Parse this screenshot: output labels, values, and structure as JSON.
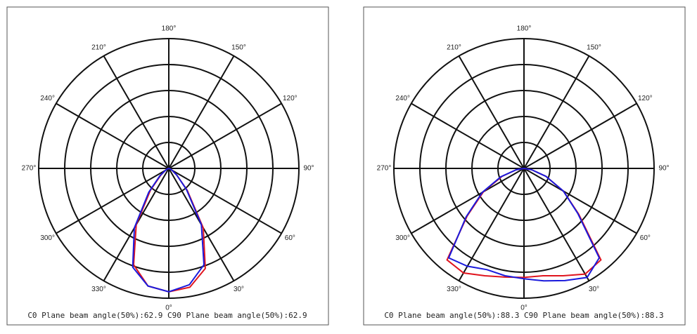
{
  "chart_data": [
    {
      "type": "polar",
      "caption": "C0 Plane beam angle(50%):62.9  C90 Plane beam angle(50%):62.9",
      "rlim": [
        0,
        1
      ],
      "rticks": [
        0.2,
        0.4,
        0.6,
        0.8,
        1
      ],
      "thetaticks": [
        {
          "value": 0,
          "label": "0°"
        },
        {
          "value": 30,
          "label": "30°"
        },
        {
          "value": 60,
          "label": "60°"
        },
        {
          "value": 90,
          "label": "90°"
        },
        {
          "value": 120,
          "label": "120°"
        },
        {
          "value": 150,
          "label": "150°"
        },
        {
          "value": 180,
          "label": "180°"
        },
        {
          "value": 210,
          "label": "210°"
        },
        {
          "value": 240,
          "label": "240°"
        },
        {
          "value": 270,
          "label": "270°"
        },
        {
          "value": 300,
          "label": "300°"
        },
        {
          "value": 330,
          "label": "330°"
        }
      ],
      "theta": [
        270,
        280,
        290,
        300,
        310,
        320,
        330,
        340,
        350,
        0,
        10,
        20,
        30,
        40,
        50,
        60,
        70,
        80,
        90
      ],
      "series": [
        {
          "color": "#e0141e",
          "values": [
            0,
            0,
            0.01,
            0.03,
            0.08,
            0.22,
            0.5,
            0.79,
            0.92,
            0.95,
            0.93,
            0.82,
            0.53,
            0.22,
            0.08,
            0.03,
            0.01,
            0,
            0
          ]
        },
        {
          "color": "#1a1adc",
          "values": [
            0,
            0,
            0.01,
            0.03,
            0.09,
            0.24,
            0.53,
            0.81,
            0.92,
            0.95,
            0.91,
            0.79,
            0.5,
            0.21,
            0.08,
            0.03,
            0.01,
            0,
            0
          ]
        }
      ]
    },
    {
      "type": "polar",
      "caption": "C0 Plane beam angle(50%):88.3  C90 Plane beam angle(50%):88.3",
      "rlim": [
        0,
        1
      ],
      "rticks": [
        0.2,
        0.4,
        0.6,
        0.8,
        1
      ],
      "thetaticks": [
        {
          "value": 0,
          "label": "0°"
        },
        {
          "value": 30,
          "label": "30°"
        },
        {
          "value": 60,
          "label": "60°"
        },
        {
          "value": 90,
          "label": "90°"
        },
        {
          "value": 120,
          "label": "120°"
        },
        {
          "value": 150,
          "label": "150°"
        },
        {
          "value": 180,
          "label": "180°"
        },
        {
          "value": 210,
          "label": "210°"
        },
        {
          "value": 240,
          "label": "240°"
        },
        {
          "value": 270,
          "label": "270°"
        },
        {
          "value": 300,
          "label": "300°"
        },
        {
          "value": 330,
          "label": "330°"
        }
      ],
      "theta": [
        270,
        280,
        290,
        300,
        310,
        320,
        330,
        340,
        350,
        0,
        10,
        20,
        30,
        40,
        50,
        60,
        70,
        80,
        90
      ],
      "series": [
        {
          "color": "#e0141e",
          "values": [
            0,
            0.06,
            0.18,
            0.36,
            0.57,
            0.92,
            0.93,
            0.88,
            0.85,
            0.84,
            0.84,
            0.88,
            0.94,
            0.92,
            0.55,
            0.35,
            0.18,
            0.06,
            0
          ]
        },
        {
          "color": "#1a1adc",
          "values": [
            0,
            0.06,
            0.19,
            0.37,
            0.58,
            0.9,
            0.87,
            0.83,
            0.84,
            0.85,
            0.88,
            0.92,
            0.97,
            0.9,
            0.54,
            0.35,
            0.18,
            0.06,
            0
          ]
        }
      ]
    }
  ]
}
